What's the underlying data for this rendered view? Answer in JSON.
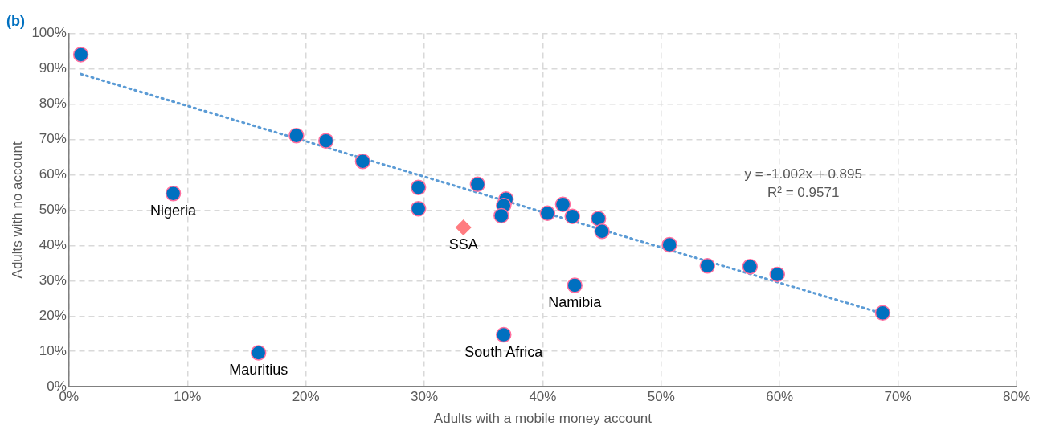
{
  "chart_data": {
    "type": "scatter",
    "title": "(b)",
    "xlabel": "Adults with a mobile money account",
    "ylabel": "Adults with no account",
    "xlim": [
      0,
      80
    ],
    "ylim": [
      0,
      100
    ],
    "xticks": [
      {
        "value": 0,
        "label": "0%"
      },
      {
        "value": 10,
        "label": "10%"
      },
      {
        "value": 20,
        "label": "20%"
      },
      {
        "value": 30,
        "label": "30%"
      },
      {
        "value": 40,
        "label": "40%"
      },
      {
        "value": 50,
        "label": "50%"
      },
      {
        "value": 60,
        "label": "60%"
      },
      {
        "value": 70,
        "label": "70%"
      },
      {
        "value": 80,
        "label": "80%"
      }
    ],
    "yticks": [
      {
        "value": 0,
        "label": "0%"
      },
      {
        "value": 10,
        "label": "10%"
      },
      {
        "value": 20,
        "label": "20%"
      },
      {
        "value": 30,
        "label": "30%"
      },
      {
        "value": 40,
        "label": "40%"
      },
      {
        "value": 50,
        "label": "50%"
      },
      {
        "value": 60,
        "label": "60%"
      },
      {
        "value": 70,
        "label": "70%"
      },
      {
        "value": 80,
        "label": "80%"
      },
      {
        "value": 90,
        "label": "90%"
      },
      {
        "value": 100,
        "label": "100%"
      }
    ],
    "grid": true,
    "legend": false,
    "series": [
      {
        "color": "#0070c0",
        "marker": "circle",
        "x": [
          1,
          19.2,
          21.7,
          24.8,
          29.5,
          29.5,
          34.5,
          36.9,
          36.7,
          36.5,
          40.4,
          41.7,
          42.5,
          44.7,
          45,
          50.7,
          53.9,
          57.5,
          59.8,
          68.7
        ],
        "values": [
          94,
          71.1,
          69.6,
          63.8,
          56.4,
          50.4,
          57.3,
          53.1,
          51.3,
          48.4,
          49.1,
          51.6,
          48.2,
          47.6,
          44,
          40.2,
          34.2,
          34,
          31.8,
          20.9
        ]
      },
      {
        "color": "#0070c0",
        "marker": "circle",
        "x": [
          8.8,
          16,
          36.7,
          42.7
        ],
        "values": [
          54.7,
          9.6,
          14.7,
          28.7
        ]
      },
      {
        "color": "#ff7c80",
        "marker": "diamond",
        "x": [
          33.3
        ],
        "values": [
          45.1
        ]
      },
      {
        "type": "line",
        "color": "#5b9bd5",
        "line_style": "dotted",
        "marker": "none",
        "x": [
          1,
          68.7
        ],
        "values": [
          88.5,
          20.7
        ]
      }
    ],
    "annotations": [
      {
        "text": "Nigeria",
        "x": 8.8,
        "y": 54.7
      },
      {
        "text": "Mauritius",
        "x": 16,
        "y": 9.6
      },
      {
        "text": "South Africa",
        "x": 36.7,
        "y": 14.7
      },
      {
        "text": "Namibia",
        "x": 42.7,
        "y": 28.7
      },
      {
        "text": "SSA",
        "x": 33.3,
        "y": 45.1
      },
      "y = -1.002x + 0.895",
      "R² = 0.9571"
    ]
  }
}
